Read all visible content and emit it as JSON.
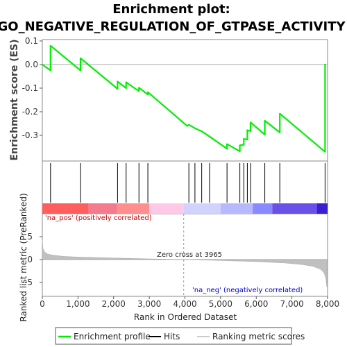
{
  "chart_data": {
    "type": "line",
    "title_line1": "Enrichment plot:",
    "title_line2": "GO_NEGATIVE_REGULATION_OF_GTPASE_ACTIVITY",
    "ylabel_top": "Enrichment score (ES)",
    "ylabel_bottom": "Ranked list metric (PreRanked)",
    "xlabel": "Rank in Ordered Dataset",
    "xlim": [
      0,
      8000
    ],
    "es_ylim": [
      -0.4,
      0.1
    ],
    "metric_ylim": [
      -7,
      7
    ],
    "x_ticks": [
      {
        "value": 0,
        "label": "0"
      },
      {
        "value": 1000,
        "label": "1,000"
      },
      {
        "value": 2000,
        "label": "2,000"
      },
      {
        "value": 3000,
        "label": "3,000"
      },
      {
        "value": 4000,
        "label": "4,000"
      },
      {
        "value": 5000,
        "label": "5,000"
      },
      {
        "value": 6000,
        "label": "6,000"
      },
      {
        "value": 7000,
        "label": "7,000"
      },
      {
        "value": 8000,
        "label": "8,000"
      }
    ],
    "es_y_ticks": [
      {
        "value": 0.1,
        "label": "0.1"
      },
      {
        "value": 0.0,
        "label": "0.0"
      },
      {
        "value": -0.1,
        "label": "-0.1"
      },
      {
        "value": -0.2,
        "label": "-0.2"
      },
      {
        "value": -0.3,
        "label": "-0.3"
      }
    ],
    "metric_y_ticks": [
      {
        "value": 5,
        "label": "5"
      },
      {
        "value": 0,
        "label": "0"
      },
      {
        "value": -5,
        "label": "-5"
      }
    ],
    "enrichment_profile": {
      "x": [
        0,
        230,
        230,
        1070,
        1070,
        2110,
        2110,
        2350,
        2350,
        2710,
        2710,
        2960,
        2960,
        4060,
        4110,
        4280,
        4470,
        4690,
        5180,
        5180,
        5540,
        5540,
        5650,
        5650,
        5750,
        5750,
        5840,
        5840,
        6240,
        6240,
        6660,
        6660,
        7930,
        7930
      ],
      "y": [
        0.0,
        -0.025,
        0.08,
        -0.025,
        0.027,
        -0.103,
        -0.072,
        -0.1,
        -0.075,
        -0.113,
        -0.098,
        -0.127,
        -0.117,
        -0.26,
        -0.255,
        -0.27,
        -0.283,
        -0.305,
        -0.357,
        -0.337,
        -0.368,
        -0.342,
        -0.34,
        -0.315,
        -0.318,
        -0.278,
        -0.282,
        -0.245,
        -0.297,
        -0.238,
        -0.288,
        -0.208,
        -0.37,
        0.003
      ]
    },
    "hits": [
      230,
      1070,
      2110,
      2350,
      2710,
      2960,
      4110,
      4280,
      4470,
      4690,
      5180,
      5540,
      5650,
      5750,
      5840,
      6240,
      6660,
      7930
    ],
    "color_bar": [
      {
        "from": 0,
        "to": 1300,
        "color": "#ff5e5e"
      },
      {
        "from": 1300,
        "to": 2100,
        "color": "#f47b8e"
      },
      {
        "from": 2100,
        "to": 3000,
        "color": "#ff8f8f"
      },
      {
        "from": 3000,
        "to": 3965,
        "color": "#ffc8e8"
      },
      {
        "from": 3965,
        "to": 5000,
        "color": "#d2d2ff"
      },
      {
        "from": 5000,
        "to": 5900,
        "color": "#b8b8ff"
      },
      {
        "from": 5900,
        "to": 6450,
        "color": "#8a8aff"
      },
      {
        "from": 6450,
        "to": 7700,
        "color": "#6a50e8"
      },
      {
        "from": 7700,
        "to": 8000,
        "color": "#3c1ed2"
      }
    ],
    "ranked_metric": {
      "x": [
        0,
        20,
        60,
        150,
        300,
        600,
        1000,
        2000,
        3000,
        3965,
        5000,
        6000,
        6800,
        7300,
        7600,
        7800,
        7900,
        7950,
        7980
      ],
      "y": [
        4.2,
        2.4,
        1.7,
        1.2,
        0.95,
        0.7,
        0.55,
        0.35,
        0.15,
        0.0,
        -0.2,
        -0.45,
        -0.75,
        -1.1,
        -1.5,
        -2.1,
        -2.9,
        -4.0,
        -6.0
      ]
    },
    "zero_cross": 3965,
    "zero_cross_label": "Zero cross at 3965",
    "pos_label": "'na_pos' (positively correlated)",
    "neg_label": "'na_neg' (negatively correlated)",
    "legend": [
      {
        "label": "Enrichment profile",
        "color": "#00ee00"
      },
      {
        "label": "Hits",
        "color": "#000000"
      },
      {
        "label": "Ranking metric scores",
        "color": "#cccccc"
      }
    ]
  }
}
